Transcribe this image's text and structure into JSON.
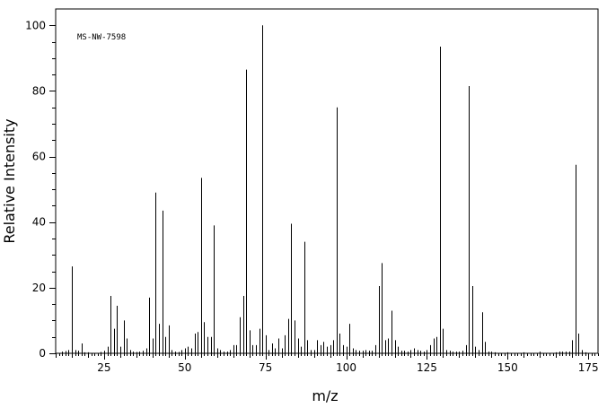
{
  "chart_data": {
    "type": "bar",
    "subtype": "mass-spectrum-stick",
    "title": "",
    "annotation": "MS-NW-7598",
    "xlabel": "m/z",
    "ylabel": "Relative Intensity",
    "xlim": [
      10,
      178
    ],
    "ylim": [
      0,
      105
    ],
    "xticks_major": [
      25,
      50,
      75,
      100,
      125,
      150,
      175
    ],
    "xtick_minor_step": 1,
    "yticks_major": [
      0,
      20,
      40,
      60,
      80,
      100
    ],
    "ytick_minor_step": 5,
    "grid": false,
    "legend": "none",
    "peaks": [
      [
        12,
        0.5
      ],
      [
        13,
        0.7
      ],
      [
        14,
        1.0
      ],
      [
        15,
        26.5
      ],
      [
        16,
        1.0
      ],
      [
        17,
        0.8
      ],
      [
        18,
        3.0
      ],
      [
        19,
        0.3
      ],
      [
        20,
        0.3
      ],
      [
        24,
        0.4
      ],
      [
        25,
        0.8
      ],
      [
        26,
        2.0
      ],
      [
        27,
        17.5
      ],
      [
        28,
        7.5
      ],
      [
        29,
        14.5
      ],
      [
        30,
        2.0
      ],
      [
        31,
        10.0
      ],
      [
        32,
        4.5
      ],
      [
        33,
        1.0
      ],
      [
        34,
        0.5
      ],
      [
        35,
        0.4
      ],
      [
        36,
        0.5
      ],
      [
        37,
        0.8
      ],
      [
        38,
        1.5
      ],
      [
        39,
        17.0
      ],
      [
        40,
        4.5
      ],
      [
        41,
        49.0
      ],
      [
        42,
        9.0
      ],
      [
        43,
        43.5
      ],
      [
        44,
        5.0
      ],
      [
        45,
        8.5
      ],
      [
        46,
        1.0
      ],
      [
        47,
        0.5
      ],
      [
        48,
        0.4
      ],
      [
        49,
        1.0
      ],
      [
        50,
        1.5
      ],
      [
        51,
        2.0
      ],
      [
        52,
        1.5
      ],
      [
        53,
        6.0
      ],
      [
        54,
        6.5
      ],
      [
        55,
        53.5
      ],
      [
        56,
        9.5
      ],
      [
        57,
        5.0
      ],
      [
        58,
        5.0
      ],
      [
        59,
        39.0
      ],
      [
        60,
        1.5
      ],
      [
        61,
        1.0
      ],
      [
        62,
        0.5
      ],
      [
        63,
        0.5
      ],
      [
        64,
        1.0
      ],
      [
        65,
        2.5
      ],
      [
        66,
        2.5
      ],
      [
        67,
        11.0
      ],
      [
        68,
        17.5
      ],
      [
        69,
        86.5
      ],
      [
        70,
        7.0
      ],
      [
        71,
        2.5
      ],
      [
        72,
        2.5
      ],
      [
        73,
        7.5
      ],
      [
        74,
        100.0
      ],
      [
        75,
        5.5
      ],
      [
        76,
        1.0
      ],
      [
        77,
        3.0
      ],
      [
        78,
        1.5
      ],
      [
        79,
        4.5
      ],
      [
        80,
        1.5
      ],
      [
        81,
        5.5
      ],
      [
        82,
        10.5
      ],
      [
        83,
        39.5
      ],
      [
        84,
        10.0
      ],
      [
        85,
        4.5
      ],
      [
        86,
        2.0
      ],
      [
        87,
        34.0
      ],
      [
        88,
        4.0
      ],
      [
        89,
        1.0
      ],
      [
        90,
        1.0
      ],
      [
        91,
        4.0
      ],
      [
        92,
        2.5
      ],
      [
        93,
        3.5
      ],
      [
        94,
        2.0
      ],
      [
        95,
        2.5
      ],
      [
        96,
        4.0
      ],
      [
        97,
        75.0
      ],
      [
        98,
        6.0
      ],
      [
        99,
        2.5
      ],
      [
        100,
        2.0
      ],
      [
        101,
        9.0
      ],
      [
        102,
        1.5
      ],
      [
        103,
        1.0
      ],
      [
        104,
        0.8
      ],
      [
        105,
        0.8
      ],
      [
        106,
        1.0
      ],
      [
        107,
        0.8
      ],
      [
        108,
        0.8
      ],
      [
        109,
        2.5
      ],
      [
        110,
        20.5
      ],
      [
        111,
        27.5
      ],
      [
        112,
        4.0
      ],
      [
        113,
        4.5
      ],
      [
        114,
        13.0
      ],
      [
        115,
        4.0
      ],
      [
        116,
        2.0
      ],
      [
        117,
        0.8
      ],
      [
        118,
        0.8
      ],
      [
        119,
        0.5
      ],
      [
        120,
        1.0
      ],
      [
        121,
        1.5
      ],
      [
        122,
        1.0
      ],
      [
        123,
        0.8
      ],
      [
        124,
        0.5
      ],
      [
        125,
        1.0
      ],
      [
        126,
        2.5
      ],
      [
        127,
        4.5
      ],
      [
        128,
        5.0
      ],
      [
        129,
        93.5
      ],
      [
        130,
        7.5
      ],
      [
        131,
        1.0
      ],
      [
        132,
        0.8
      ],
      [
        133,
        0.5
      ],
      [
        134,
        0.5
      ],
      [
        135,
        0.5
      ],
      [
        136,
        0.8
      ],
      [
        137,
        2.5
      ],
      [
        138,
        81.5
      ],
      [
        139,
        20.5
      ],
      [
        140,
        2.0
      ],
      [
        141,
        1.0
      ],
      [
        142,
        12.5
      ],
      [
        143,
        3.5
      ],
      [
        144,
        0.5
      ],
      [
        145,
        0.5
      ],
      [
        146,
        0.3
      ],
      [
        150,
        0.3
      ],
      [
        155,
        0.3
      ],
      [
        160,
        0.5
      ],
      [
        165,
        0.3
      ],
      [
        166,
        0.5
      ],
      [
        167,
        0.5
      ],
      [
        168,
        0.5
      ],
      [
        169,
        0.5
      ],
      [
        170,
        4.0
      ],
      [
        171,
        57.5
      ],
      [
        172,
        6.0
      ],
      [
        173,
        1.0
      ],
      [
        174,
        0.3
      ]
    ]
  }
}
